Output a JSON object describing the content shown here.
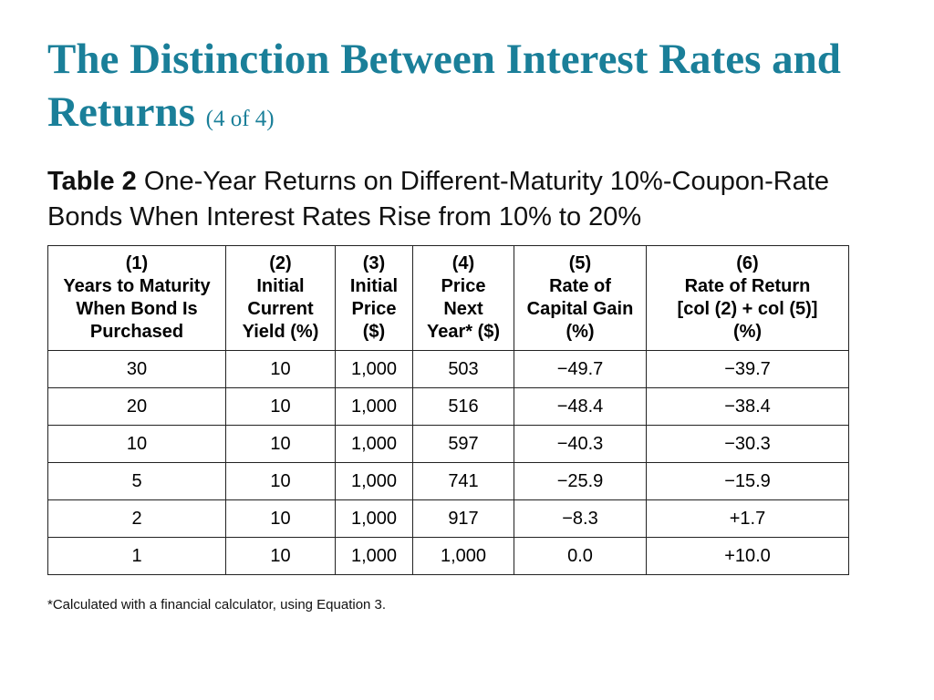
{
  "slide": {
    "title_main": "The Distinction Between Interest Rates and Returns",
    "title_part": "(4 of 4)"
  },
  "caption": {
    "label": "Table 2",
    "text": "One-Year Returns on Different-Maturity 10%-Coupon-Rate Bonds When Interest Rates Rise from 10% to 20%"
  },
  "table": {
    "headers": [
      {
        "lines": [
          "(1)",
          "Years to Maturity",
          "When Bond Is",
          "Purchased"
        ]
      },
      {
        "lines": [
          "(2)",
          "Initial",
          "Current",
          "Yield (%)"
        ]
      },
      {
        "lines": [
          "(3)",
          "Initial",
          "Price",
          "($)"
        ]
      },
      {
        "lines": [
          "(4)",
          "Price",
          "Next",
          "Year* ($)"
        ]
      },
      {
        "lines": [
          "(5)",
          "Rate of",
          "Capital Gain",
          "(%)"
        ]
      },
      {
        "lines": [
          "(6)",
          "Rate of Return",
          "[col (2) + col (5)]",
          "(%)"
        ]
      }
    ],
    "rows": [
      [
        "30",
        "10",
        "1,000",
        "503",
        "−49.7",
        "−39.7"
      ],
      [
        "20",
        "10",
        "1,000",
        "516",
        "−48.4",
        "−38.4"
      ],
      [
        "10",
        "10",
        "1,000",
        "597",
        "−40.3",
        "−30.3"
      ],
      [
        "5",
        "10",
        "1,000",
        "741",
        "−25.9",
        "−15.9"
      ],
      [
        "2",
        "10",
        "1,000",
        "917",
        "−8.3",
        "+1.7"
      ],
      [
        "1",
        "10",
        "1,000",
        "1,000",
        "0.0",
        "+10.0"
      ]
    ]
  },
  "footnote": "*Calculated with a financial calculator, using Equation 3."
}
